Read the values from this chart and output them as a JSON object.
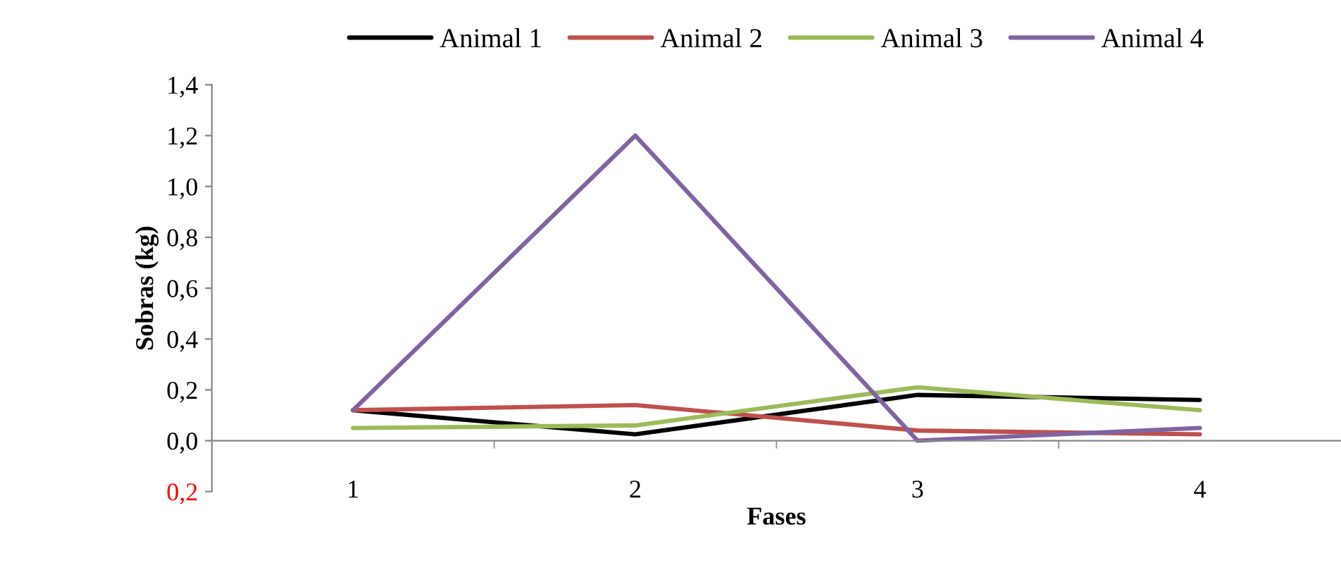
{
  "chart_data": {
    "type": "line",
    "xlabel": "Fases",
    "ylabel": "Sobras (kg)",
    "categories": [
      "1",
      "2",
      "3",
      "4"
    ],
    "series": [
      {
        "name": "Animal 1",
        "color": "#000000",
        "values": [
          0.12,
          0.025,
          0.18,
          0.16
        ]
      },
      {
        "name": "Animal 2",
        "color": "#c0504d",
        "values": [
          0.12,
          0.14,
          0.04,
          0.025
        ]
      },
      {
        "name": "Animal 3",
        "color": "#9bbb59",
        "values": [
          0.05,
          0.06,
          0.21,
          0.12
        ]
      },
      {
        "name": "Animal 4",
        "color": "#8064a2",
        "values": [
          0.12,
          1.2,
          0.0,
          0.05
        ]
      }
    ],
    "ylim": [
      -0.2,
      1.4
    ],
    "yticks": [
      {
        "value": -0.2,
        "label": "0,2"
      },
      {
        "value": 0,
        "label": "0,0"
      },
      {
        "value": 0.2,
        "label": "0,2"
      },
      {
        "value": 0.4,
        "label": "0,4"
      },
      {
        "value": 0.6,
        "label": "0,6"
      },
      {
        "value": 0.8,
        "label": "0,8"
      },
      {
        "value": 1.0,
        "label": "1,0"
      },
      {
        "value": 1.2,
        "label": "1,2"
      },
      {
        "value": 1.4,
        "label": "1,4"
      }
    ],
    "grid": false,
    "legend": "top",
    "marker": "none",
    "line_style": "solid"
  }
}
